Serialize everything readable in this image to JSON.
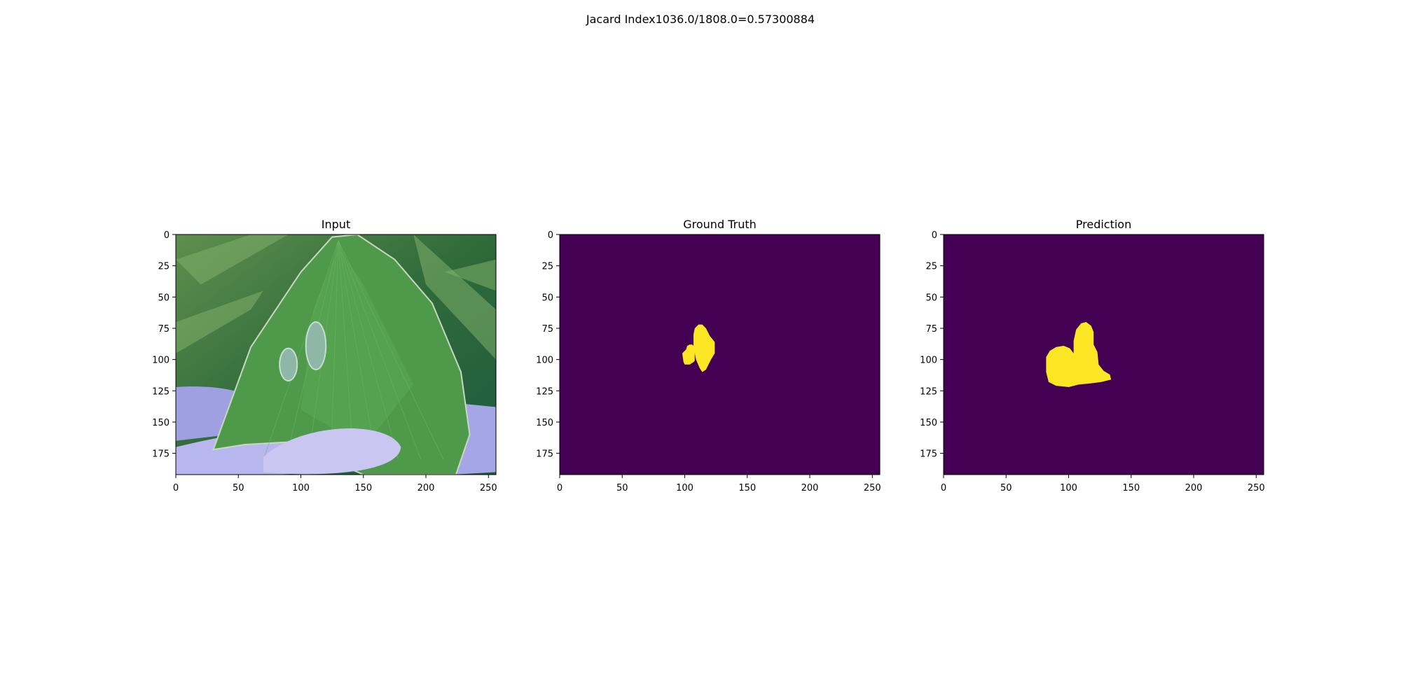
{
  "figure": {
    "suptitle": "Jacard Index1036.0/1808.0=0.57300884"
  },
  "chart_data": [
    {
      "type": "image",
      "title": "Input",
      "xlim": [
        0,
        256
      ],
      "ylim": [
        192,
        0
      ],
      "xticks": [
        0,
        50,
        100,
        150,
        200,
        250
      ],
      "yticks": [
        0,
        25,
        50,
        75,
        100,
        125,
        150,
        175
      ],
      "content": "photo of green leaf with two pale lesions held between fingers",
      "lesions": [
        {
          "cx": 90,
          "cy": 104,
          "rx": 7,
          "ry": 13
        },
        {
          "cx": 112,
          "cy": 89,
          "rx": 8,
          "ry": 19
        }
      ]
    },
    {
      "type": "heatmap",
      "title": "Ground Truth",
      "xlim": [
        0,
        256
      ],
      "ylim": [
        192,
        0
      ],
      "xticks": [
        0,
        50,
        100,
        150,
        200,
        250
      ],
      "yticks": [
        0,
        25,
        50,
        75,
        100,
        125,
        150,
        175
      ],
      "colormap": {
        "background": "#440154",
        "foreground": "#fde725"
      },
      "regions": [
        [
          [
            101,
            92
          ],
          [
            102,
            89
          ],
          [
            104,
            88
          ],
          [
            106,
            88
          ],
          [
            107,
            89
          ],
          [
            108,
            90
          ],
          [
            108,
            101
          ],
          [
            107,
            102
          ],
          [
            104,
            104
          ],
          [
            100,
            104
          ],
          [
            99,
            102
          ],
          [
            98,
            95
          ]
        ],
        [
          [
            107,
            80
          ],
          [
            108,
            75
          ],
          [
            111,
            72
          ],
          [
            114,
            72
          ],
          [
            117,
            75
          ],
          [
            120,
            81
          ],
          [
            124,
            86
          ],
          [
            124,
            95
          ],
          [
            121,
            100
          ],
          [
            119,
            104
          ],
          [
            117,
            108
          ],
          [
            114,
            110
          ],
          [
            112,
            107
          ],
          [
            109,
            100
          ],
          [
            107,
            90
          ]
        ]
      ]
    },
    {
      "type": "heatmap",
      "title": "Prediction",
      "xlim": [
        0,
        256
      ],
      "ylim": [
        192,
        0
      ],
      "xticks": [
        0,
        50,
        100,
        150,
        200,
        250
      ],
      "yticks": [
        0,
        25,
        50,
        75,
        100,
        125,
        150,
        175
      ],
      "colormap": {
        "background": "#440154",
        "foreground": "#fde725"
      },
      "regions": [
        [
          [
            82,
            98
          ],
          [
            85,
            93
          ],
          [
            90,
            90
          ],
          [
            96,
            89
          ],
          [
            101,
            91
          ],
          [
            104,
            95
          ],
          [
            104,
            85
          ],
          [
            106,
            76
          ],
          [
            110,
            71
          ],
          [
            114,
            70
          ],
          [
            118,
            73
          ],
          [
            120,
            78
          ],
          [
            120,
            88
          ],
          [
            123,
            94
          ],
          [
            124,
            104
          ],
          [
            128,
            109
          ],
          [
            133,
            112
          ],
          [
            134,
            116
          ],
          [
            126,
            118
          ],
          [
            118,
            119
          ],
          [
            108,
            120
          ],
          [
            100,
            122
          ],
          [
            90,
            121
          ],
          [
            84,
            118
          ],
          [
            82,
            110
          ]
        ]
      ]
    }
  ]
}
